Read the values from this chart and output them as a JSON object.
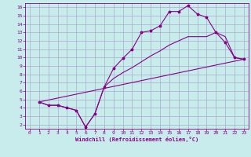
{
  "xlabel": "Windchill (Refroidissement éolien,°C)",
  "bg_color": "#c8ecec",
  "grid_color": "#aaaacc",
  "line_color": "#880088",
  "spine_color": "#664466",
  "xlim": [
    -0.5,
    23.5
  ],
  "ylim": [
    1.5,
    16.5
  ],
  "xticks": [
    0,
    1,
    2,
    3,
    4,
    5,
    6,
    7,
    8,
    9,
    10,
    11,
    12,
    13,
    14,
    15,
    16,
    17,
    18,
    19,
    20,
    21,
    22,
    23
  ],
  "yticks": [
    2,
    3,
    4,
    5,
    6,
    7,
    8,
    9,
    10,
    11,
    12,
    13,
    14,
    15,
    16
  ],
  "line1_x": [
    1,
    2,
    3,
    4,
    5,
    6,
    7,
    8,
    9,
    10,
    11,
    12,
    13,
    14,
    15,
    16,
    17,
    18,
    19,
    20,
    21,
    22,
    23
  ],
  "line1_y": [
    4.7,
    4.3,
    4.3,
    4.0,
    3.7,
    1.7,
    3.3,
    6.5,
    8.7,
    9.9,
    11.0,
    13.0,
    13.2,
    13.8,
    15.5,
    15.5,
    16.2,
    15.2,
    14.8,
    13.0,
    11.8,
    10.0,
    9.8
  ],
  "line2_x": [
    1,
    2,
    3,
    4,
    5,
    6,
    7,
    8,
    9,
    10,
    11,
    12,
    13,
    14,
    15,
    16,
    17,
    18,
    19,
    20,
    21,
    22,
    23
  ],
  "line2_y": [
    4.7,
    4.3,
    4.3,
    4.0,
    3.7,
    1.7,
    3.3,
    6.5,
    7.5,
    8.2,
    8.8,
    9.5,
    10.2,
    10.8,
    11.5,
    12.0,
    12.5,
    12.5,
    12.5,
    13.0,
    12.5,
    10.0,
    9.8
  ],
  "line3_x": [
    1,
    23
  ],
  "line3_y": [
    4.7,
    9.8
  ]
}
